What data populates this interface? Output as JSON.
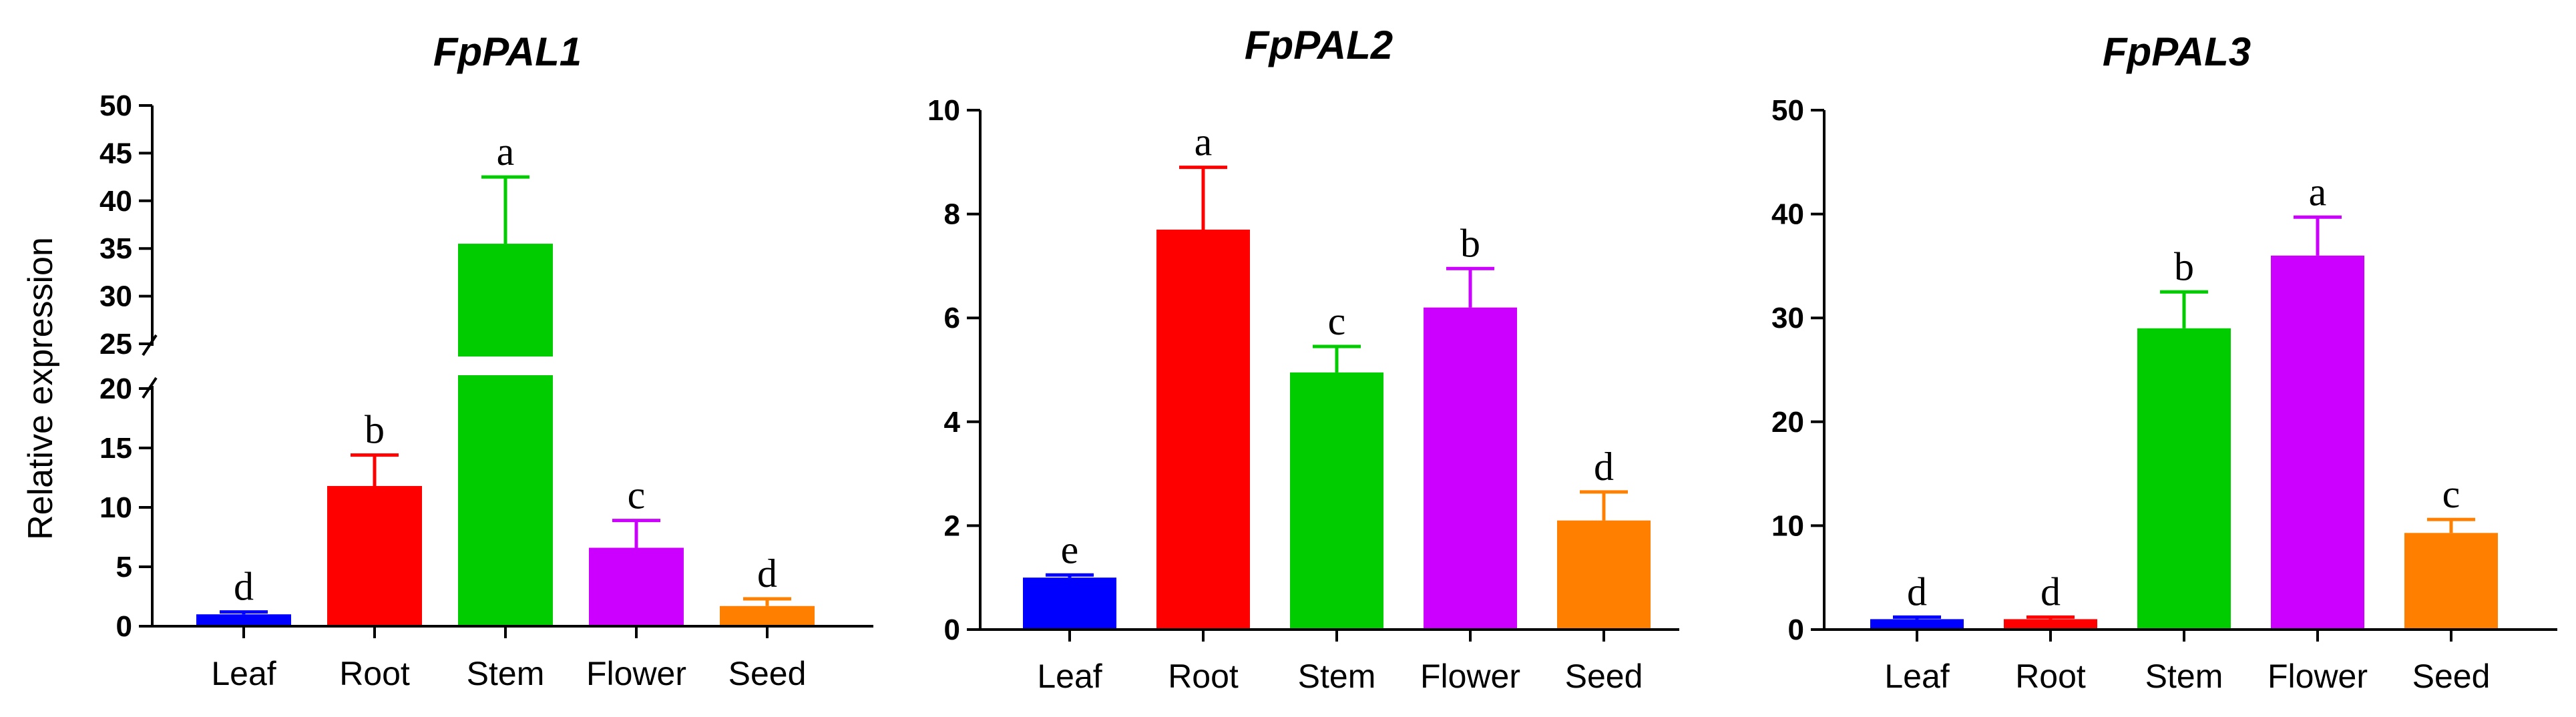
{
  "chart_data": [
    {
      "type": "bar",
      "title": "FpPAL1",
      "ylabel": "Relative expression",
      "xlabel": "",
      "categories": [
        "Leaf",
        "Root",
        "Stem",
        "Flower",
        "Seed"
      ],
      "values": [
        1.0,
        11.8,
        35.5,
        6.6,
        1.7
      ],
      "errors": [
        0.2,
        2.6,
        7.0,
        2.3,
        0.6
      ],
      "significance": [
        "d",
        "b",
        "a",
        "c",
        "d"
      ],
      "colors": [
        "#0000FF",
        "#FF0000",
        "#00CC00",
        "#CC00FF",
        "#FF8000"
      ],
      "axis_break": [
        20,
        25
      ],
      "ylim": [
        0,
        50
      ],
      "yticks_lower": [
        0,
        5,
        10,
        15,
        20
      ],
      "yticks_upper": [
        25,
        30,
        35,
        40,
        45,
        50
      ],
      "ytick_labels": [
        "0",
        "5",
        "10",
        "15",
        "20",
        "25",
        "30",
        "35",
        "40",
        "45",
        "50"
      ]
    },
    {
      "type": "bar",
      "title": "FpPAL2",
      "ylabel": "",
      "xlabel": "",
      "categories": [
        "Leaf",
        "Root",
        "Stem",
        "Flower",
        "Seed"
      ],
      "values": [
        1.0,
        7.7,
        4.95,
        6.2,
        2.1
      ],
      "errors": [
        0.05,
        1.2,
        0.5,
        0.75,
        0.55
      ],
      "significance": [
        "e",
        "a",
        "c",
        "b",
        "d"
      ],
      "colors": [
        "#0000FF",
        "#FF0000",
        "#00CC00",
        "#CC00FF",
        "#FF8000"
      ],
      "ylim": [
        0,
        10
      ],
      "yticks": [
        0,
        2,
        4,
        6,
        8,
        10
      ],
      "ytick_labels": [
        "0",
        "2",
        "4",
        "6",
        "8",
        "10"
      ]
    },
    {
      "type": "bar",
      "title": "FpPAL3",
      "ylabel": "",
      "xlabel": "",
      "categories": [
        "Leaf",
        "Root",
        "Stem",
        "Flower",
        "Seed"
      ],
      "values": [
        1.0,
        1.0,
        29.0,
        36.0,
        9.3
      ],
      "errors": [
        0.2,
        0.2,
        3.5,
        3.7,
        1.3
      ],
      "significance": [
        "d",
        "d",
        "b",
        "a",
        "c"
      ],
      "colors": [
        "#0000FF",
        "#FF0000",
        "#00CC00",
        "#CC00FF",
        "#FF8000"
      ],
      "ylim": [
        0,
        50
      ],
      "yticks": [
        0,
        10,
        20,
        30,
        40,
        50
      ],
      "ytick_labels": [
        "0",
        "10",
        "20",
        "30",
        "40",
        "50"
      ]
    }
  ]
}
